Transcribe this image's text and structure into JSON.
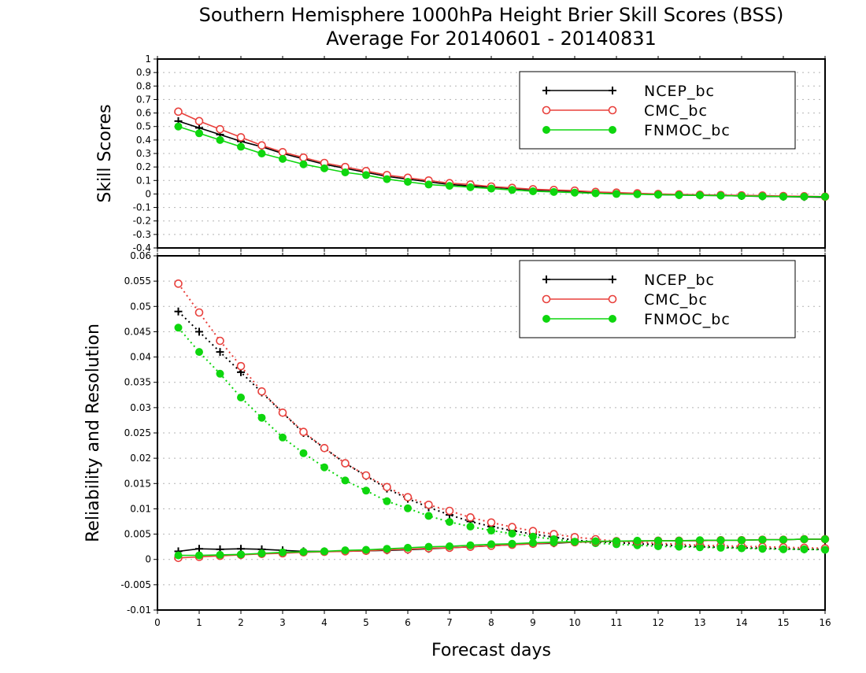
{
  "chart_data": [
    {
      "type": "line",
      "title": "Southern Hemisphere 1000hPa Height Brier Skill Scores (BSS)",
      "subtitle": "Average For 20140601 - 20140831",
      "xlabel": "",
      "ylabel": "Skill Scores",
      "xlim": [
        0,
        16
      ],
      "ylim": [
        -0.4,
        1
      ],
      "yticks": [
        "-0.4",
        "-0.3",
        "-0.2",
        "-0.1",
        "0",
        "0.1",
        "0.2",
        "0.3",
        "0.4",
        "0.5",
        "0.6",
        "0.7",
        "0.8",
        "0.9",
        "1"
      ],
      "grid": true,
      "legend_position": "top-right",
      "x": [
        0.5,
        1,
        1.5,
        2,
        2.5,
        3,
        3.5,
        4,
        4.5,
        5,
        5.5,
        6,
        6.5,
        7,
        7.5,
        8,
        8.5,
        9,
        9.5,
        10,
        10.5,
        11,
        11.5,
        12,
        12.5,
        13,
        13.5,
        14,
        14.5,
        15,
        15.5,
        16
      ],
      "series": [
        {
          "name": "NCEP_bc",
          "color": "#000000",
          "marker": "plus",
          "values": [
            0.54,
            0.49,
            0.44,
            0.39,
            0.35,
            0.3,
            0.26,
            0.22,
            0.19,
            0.16,
            0.13,
            0.11,
            0.09,
            0.07,
            0.06,
            0.05,
            0.04,
            0.03,
            0.025,
            0.02,
            0.01,
            0.005,
            0.0,
            -0.005,
            -0.008,
            -0.01,
            -0.012,
            -0.015,
            -0.018,
            -0.02,
            -0.022,
            -0.025
          ]
        },
        {
          "name": "CMC_bc",
          "color": "#e8403c",
          "marker": "open-circle",
          "values": [
            0.61,
            0.54,
            0.48,
            0.42,
            0.36,
            0.31,
            0.27,
            0.23,
            0.2,
            0.17,
            0.14,
            0.12,
            0.1,
            0.08,
            0.07,
            0.055,
            0.045,
            0.035,
            0.03,
            0.025,
            0.015,
            0.01,
            0.005,
            0.0,
            -0.003,
            -0.006,
            -0.008,
            -0.01,
            -0.012,
            -0.015,
            -0.017,
            -0.02
          ]
        },
        {
          "name": "FNMOC_bc",
          "color": "#0ed60e",
          "marker": "filled-circle",
          "values": [
            0.5,
            0.45,
            0.4,
            0.35,
            0.3,
            0.26,
            0.22,
            0.19,
            0.16,
            0.14,
            0.11,
            0.09,
            0.07,
            0.06,
            0.05,
            0.04,
            0.03,
            0.02,
            0.015,
            0.01,
            0.005,
            0.0,
            -0.002,
            -0.005,
            -0.008,
            -0.01,
            -0.012,
            -0.015,
            -0.017,
            -0.02,
            -0.02,
            -0.02
          ]
        }
      ]
    },
    {
      "type": "line",
      "xlabel": "Forecast days",
      "ylabel": "Reliability and Resolution",
      "xlim": [
        0,
        16
      ],
      "ylim": [
        -0.01,
        0.06
      ],
      "xticks": [
        "0",
        "1",
        "2",
        "3",
        "4",
        "5",
        "6",
        "7",
        "8",
        "9",
        "10",
        "11",
        "12",
        "13",
        "14",
        "15",
        "16"
      ],
      "yticks": [
        "-0.01",
        "-0.005",
        "0",
        "0.005",
        "0.01",
        "0.015",
        "0.02",
        "0.025",
        "0.03",
        "0.035",
        "0.04",
        "0.045",
        "0.05",
        "0.055",
        "0.06"
      ],
      "grid": true,
      "legend_position": "top-right",
      "x": [
        0.5,
        1,
        1.5,
        2,
        2.5,
        3,
        3.5,
        4,
        4.5,
        5,
        5.5,
        6,
        6.5,
        7,
        7.5,
        8,
        8.5,
        9,
        9.5,
        10,
        10.5,
        11,
        11.5,
        12,
        12.5,
        13,
        13.5,
        14,
        14.5,
        15,
        15.5,
        16
      ],
      "series": [
        {
          "name": "NCEP_bc",
          "color": "#000000",
          "marker": "plus",
          "line": "solid",
          "values": [
            0.0016,
            0.0021,
            0.002,
            0.0021,
            0.002,
            0.0018,
            0.0016,
            0.0016,
            0.0016,
            0.0017,
            0.0018,
            0.0019,
            0.0021,
            0.0023,
            0.0025,
            0.0027,
            0.0029,
            0.0031,
            0.0032,
            0.0034,
            0.0035,
            0.0036,
            0.0036,
            0.0037,
            0.0037,
            0.0037,
            0.0038,
            0.0038,
            0.0039,
            0.0039,
            0.004,
            0.004
          ]
        },
        {
          "name": "CMC_bc",
          "color": "#e8403c",
          "marker": "open-circle",
          "line": "solid",
          "values": [
            0.0003,
            0.0005,
            0.0007,
            0.0009,
            0.0011,
            0.0012,
            0.0014,
            0.0015,
            0.0016,
            0.0017,
            0.0019,
            0.002,
            0.0022,
            0.0023,
            0.0025,
            0.0027,
            0.0029,
            0.0031,
            0.0033,
            0.0034,
            0.0035,
            0.0036,
            0.0036,
            0.0037,
            0.0037,
            0.0037,
            0.0038,
            0.0038,
            0.0039,
            0.0039,
            0.004,
            0.004
          ]
        },
        {
          "name": "FNMOC_bc",
          "color": "#0ed60e",
          "marker": "filled-circle",
          "line": "solid",
          "values": [
            0.0008,
            0.0008,
            0.0009,
            0.001,
            0.0012,
            0.0014,
            0.0015,
            0.0016,
            0.0018,
            0.0019,
            0.0021,
            0.0023,
            0.0025,
            0.0026,
            0.0028,
            0.003,
            0.0031,
            0.0033,
            0.0034,
            0.0035,
            0.0036,
            0.0036,
            0.0037,
            0.0037,
            0.0037,
            0.0038,
            0.0038,
            0.0038,
            0.0039,
            0.0039,
            0.004,
            0.004
          ]
        },
        {
          "name": "NCEP_bc",
          "color": "#000000",
          "marker": "plus",
          "line": "dotted",
          "values": [
            0.049,
            0.045,
            0.041,
            0.037,
            0.033,
            0.029,
            0.025,
            0.022,
            0.019,
            0.0165,
            0.014,
            0.012,
            0.0103,
            0.0088,
            0.0075,
            0.0065,
            0.0057,
            0.005,
            0.0044,
            0.0038,
            0.0035,
            0.0033,
            0.0031,
            0.0029,
            0.0027,
            0.0025,
            0.0024,
            0.0023,
            0.0022,
            0.0021,
            0.002,
            0.002
          ]
        },
        {
          "name": "CMC_bc",
          "color": "#e8403c",
          "marker": "open-circle",
          "line": "dotted",
          "values": [
            0.0545,
            0.0488,
            0.0432,
            0.0382,
            0.0332,
            0.029,
            0.0252,
            0.022,
            0.019,
            0.0166,
            0.0143,
            0.0123,
            0.0108,
            0.0096,
            0.0083,
            0.0073,
            0.0064,
            0.0056,
            0.005,
            0.0044,
            0.004,
            0.0036,
            0.0034,
            0.0032,
            0.003,
            0.0028,
            0.0027,
            0.0026,
            0.0025,
            0.0024,
            0.0023,
            0.0022
          ]
        },
        {
          "name": "FNMOC_bc",
          "color": "#0ed60e",
          "marker": "filled-circle",
          "line": "dotted",
          "values": [
            0.0458,
            0.041,
            0.0367,
            0.032,
            0.028,
            0.0241,
            0.021,
            0.0182,
            0.0156,
            0.0136,
            0.0115,
            0.0101,
            0.0086,
            0.0074,
            0.0065,
            0.0057,
            0.0051,
            0.0045,
            0.004,
            0.0035,
            0.0032,
            0.003,
            0.0028,
            0.0026,
            0.0025,
            0.0024,
            0.0023,
            0.0022,
            0.0021,
            0.002,
            0.002,
            0.0019
          ]
        }
      ]
    }
  ]
}
